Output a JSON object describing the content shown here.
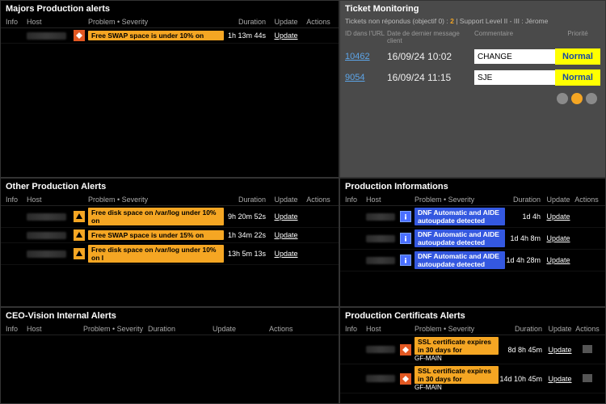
{
  "colors": {
    "bg": "#000000",
    "panel_border": "#333333",
    "text": "#ffffff",
    "muted": "#aaaaaa",
    "orange": "#f5a623",
    "red_orange": "#e25822",
    "blue": "#3458e0",
    "info_blue": "#4a6fff",
    "tm_bg": "#4a4a4a",
    "yellow": "#ffff00",
    "link_blue": "#5da5e8"
  },
  "columns": {
    "info": "Info",
    "host": "Host",
    "problem_severity": "Problem • Severity",
    "duration": "Duration",
    "update": "Update",
    "actions": "Actions"
  },
  "majors": {
    "title": "Majors Production alerts",
    "rows": [
      {
        "severity": "high",
        "problem": "Free SWAP space is under 10% on",
        "duration": "1h 13m 44s",
        "update": "Update"
      }
    ]
  },
  "other": {
    "title": "Other Production Alerts",
    "rows": [
      {
        "severity": "warn",
        "problem": "Free disk space on /var/log under 10% on",
        "duration": "9h 20m 52s",
        "update": "Update"
      },
      {
        "severity": "warn",
        "problem": "Free SWAP space is under 15% on",
        "duration": "1h 34m 22s",
        "update": "Update"
      },
      {
        "severity": "warn",
        "problem": "Free disk space on /var/log under 10% on I",
        "duration": "13h 5m 13s",
        "update": "Update"
      }
    ]
  },
  "internal": {
    "title": "CEO-Vision Internal Alerts",
    "rows": []
  },
  "ticket": {
    "title": "Ticket Monitoring",
    "subtitle_pre": "Tickets non répondus (objectif 0) : ",
    "subtitle_count": "2",
    "subtitle_post": " | Support Level II - III : Jérome",
    "head": {
      "id": "ID dans l'URL",
      "date": "Date de dernier message client",
      "comm": "Commentaire",
      "pri": "Priorité"
    },
    "rows": [
      {
        "id": "10462",
        "date": "16/09/24 10:02",
        "comment": "CHANGE",
        "priority": "Normal"
      },
      {
        "id": "9054",
        "date": "16/09/24 11:15",
        "comment": "SJE",
        "priority": "Normal"
      }
    ],
    "dots": [
      "grey",
      "orange",
      "grey"
    ]
  },
  "prodinfo": {
    "title": "Production Informations",
    "rows": [
      {
        "severity": "info",
        "problem": "DNF Automatic and AIDE autoupdate detected",
        "duration": "1d 4h",
        "update": "Update"
      },
      {
        "severity": "info",
        "problem": "DNF Automatic and AIDE autoupdate detected",
        "duration": "1d 4h 8m",
        "update": "Update"
      },
      {
        "severity": "info",
        "problem": "DNF Automatic and AIDE autoupdate detected",
        "duration": "1d 4h 28m",
        "update": "Update"
      }
    ]
  },
  "certs": {
    "title": "Production Certificats Alerts",
    "rows": [
      {
        "severity": "high",
        "problem": "SSL certificate expires in 30 days for",
        "problem2": "GF-MAIN",
        "duration": "8d 8h 45m",
        "update": "Update"
      },
      {
        "severity": "high",
        "problem": "SSL certificate expires in 30 days for",
        "problem2": "GF-MAIN",
        "duration": "14d 10h 45m",
        "update": "Update"
      }
    ]
  }
}
